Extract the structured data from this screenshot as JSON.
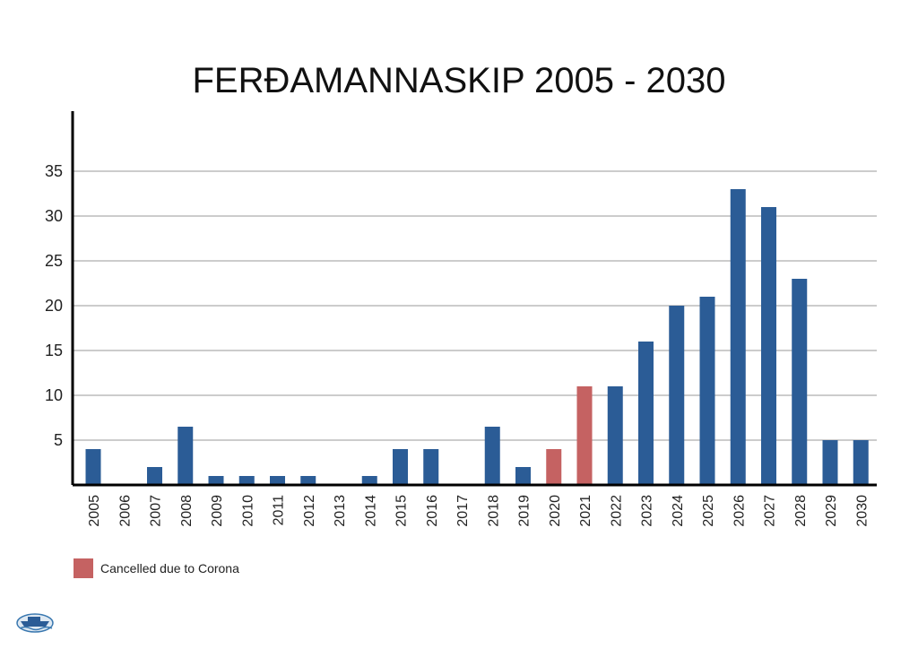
{
  "chart_data": {
    "type": "bar",
    "title": "FERÐAMANNASKIP 2005 - 2030",
    "xlabel": "",
    "ylabel": "",
    "ylim": [
      0,
      40
    ],
    "yticks": [
      5,
      10,
      15,
      20,
      25,
      30,
      35
    ],
    "grid": true,
    "categories": [
      "2005",
      "2006",
      "2007",
      "2008",
      "2009",
      "2010",
      "2011",
      "2012",
      "2013",
      "2014",
      "2015",
      "2016",
      "2017",
      "2018",
      "2019",
      "2020",
      "2021",
      "2022",
      "2023",
      "2024",
      "2025",
      "2026",
      "2027",
      "2028",
      "2029",
      "2030"
    ],
    "values": [
      4,
      0,
      2,
      6.5,
      1,
      1,
      1,
      1,
      0,
      1,
      4,
      4,
      0,
      6.5,
      2,
      4,
      11,
      11,
      16,
      20,
      21,
      33,
      31,
      23,
      5,
      5
    ],
    "cancelled": [
      "2020",
      "2021"
    ],
    "legend": {
      "label": "Cancelled due to Corona",
      "position": "bottom-left"
    },
    "colors": {
      "bar": "#2b5c96",
      "cancelled": "#c56262",
      "grid": "#9a9a9a",
      "axis": "#000000"
    }
  },
  "logo": {
    "icon": "cruise-ship-logo-icon"
  }
}
